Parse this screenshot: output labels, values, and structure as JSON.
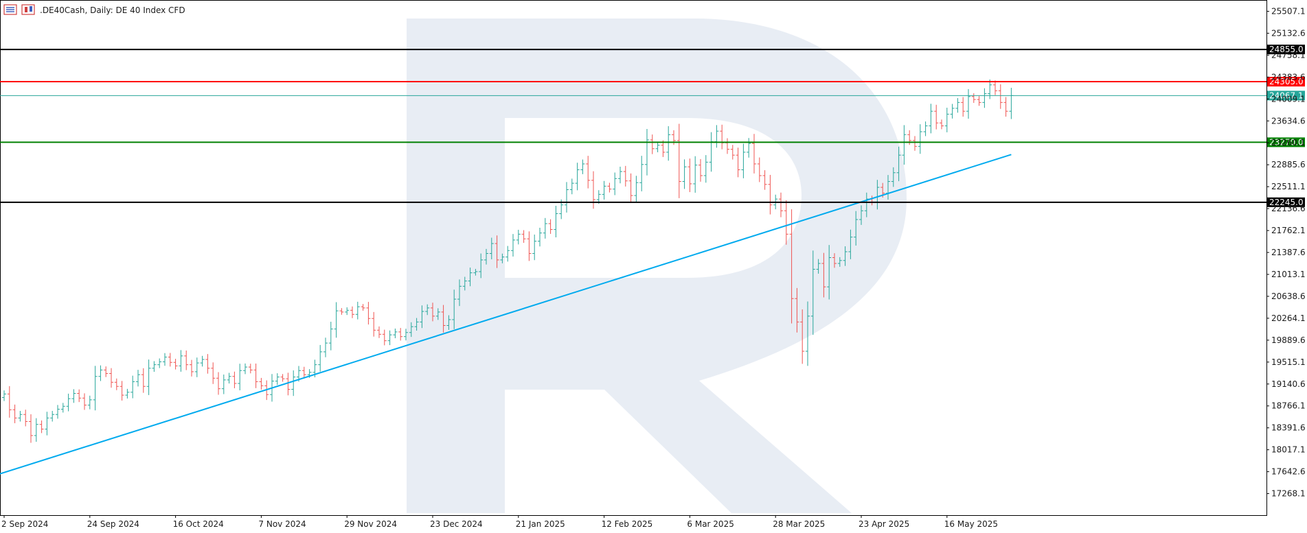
{
  "header": {
    "title": ".DE40Cash, Daily:  DE 40 Index CFD",
    "icons": [
      "bar-chart-icon",
      "candlestick-icon"
    ]
  },
  "chart_data": {
    "type": "ohlc-bar",
    "symbol": ".DE40Cash",
    "timeframe": "Daily",
    "instrument": "DE 40 Index CFD",
    "ylim": [
      16900,
      25700
    ],
    "y_ticks": [
      "25507.1",
      "25132.6",
      "24758.1",
      "24383.6",
      "24009.1",
      "23634.6",
      "23260.1",
      "22885.6",
      "22511.1",
      "22136.6",
      "21762.1",
      "21387.6",
      "21013.1",
      "20638.6",
      "20264.1",
      "19889.6",
      "19515.1",
      "19140.6",
      "18766.1",
      "18391.6",
      "18017.1",
      "17642.6",
      "17268.1"
    ],
    "x_ticks": [
      "2 Sep 2024",
      "24 Sep 2024",
      "16 Oct 2024",
      "7 Nov 2024",
      "29 Nov 2024",
      "23 Dec 2024",
      "21 Jan 2025",
      "12 Feb 2025",
      "6 Mar 2025",
      "28 Mar 2025",
      "23 Apr 2025",
      "16 May 2025"
    ],
    "x_tick_bar_index": [
      0,
      16,
      32,
      48,
      64,
      80,
      96,
      112,
      128,
      144,
      160,
      176
    ],
    "current_price": {
      "label": "24067.1",
      "value": 24067.1,
      "color": "#26a69a"
    },
    "levels": [
      {
        "label": "24855.0",
        "value": 24855.0,
        "color": "#000000",
        "text_color": "#ffffff"
      },
      {
        "label": "24305.0",
        "value": 24305.0,
        "color": "#ff0000",
        "text_color": "#ffffff"
      },
      {
        "label": "23270.0",
        "value": 23270.0,
        "color": "#008000",
        "text_color": "#ffffff"
      },
      {
        "label": "22245.0",
        "value": 22245.0,
        "color": "#000000",
        "text_color": "#ffffff"
      }
    ],
    "trendline": {
      "color": "#00aaee",
      "start": {
        "bar": -1,
        "value": 17600
      },
      "end": {
        "bar": 188,
        "value": 23060
      }
    },
    "series": [
      {
        "close": [
          18970,
          18700,
          18560,
          18620,
          18500,
          18260,
          18450,
          18370,
          18560,
          18620,
          18710,
          18760,
          18890,
          18980,
          18900,
          18780,
          18870,
          19270,
          19380,
          19320,
          19170,
          19100,
          18950,
          19000,
          19180,
          19300,
          19100,
          19410,
          19470,
          19520,
          19600,
          19510,
          19450,
          19620,
          19470,
          19350,
          19500,
          19560,
          19410,
          19240,
          19060,
          19210,
          19270,
          19150,
          19370,
          19430,
          19380,
          19180,
          19110,
          18960,
          19190,
          19260,
          19230,
          19050,
          19260,
          19370,
          19300,
          19340,
          19470,
          19690,
          19840,
          20080,
          20390,
          20370,
          20400,
          20330,
          20460,
          20440,
          20260,
          20060,
          19990,
          19880,
          19980,
          20030,
          19950,
          20020,
          20120,
          20200,
          20380,
          20440,
          20300,
          20370,
          20140,
          20240,
          20590,
          20810,
          20900,
          21040,
          21060,
          21260,
          21370,
          21540,
          21260,
          21310,
          21420,
          21600,
          21700,
          21620,
          21370,
          21580,
          21720,
          21880,
          21780,
          22050,
          22200,
          22460,
          22570,
          22800,
          22900,
          22620,
          22290,
          22380,
          22520,
          22470,
          22650,
          22770,
          22610,
          22360,
          22580,
          22890,
          23310,
          23160,
          23220,
          23100,
          23400,
          23300,
          22600,
          22850,
          22560,
          22880,
          22700,
          22930,
          23280,
          23460,
          23260,
          23150,
          23050,
          22800,
          23100,
          23250,
          22900,
          22700,
          22550,
          22200,
          22300,
          22100,
          21700,
          20600,
          20200,
          19700,
          20300,
          21100,
          21200,
          20800,
          21300,
          21200,
          21250,
          21400,
          21650,
          21950,
          22100,
          22300,
          22250,
          22500,
          22400,
          22600,
          22750,
          23050,
          23400,
          23300,
          23200,
          23450,
          23550,
          23800,
          23600,
          23550,
          23750,
          23850,
          23950,
          23800,
          24050,
          24000,
          23950,
          24100,
          24250,
          24150,
          23950,
          23800,
          24067
        ]
      }
    ],
    "grid": false,
    "legend": "none"
  }
}
